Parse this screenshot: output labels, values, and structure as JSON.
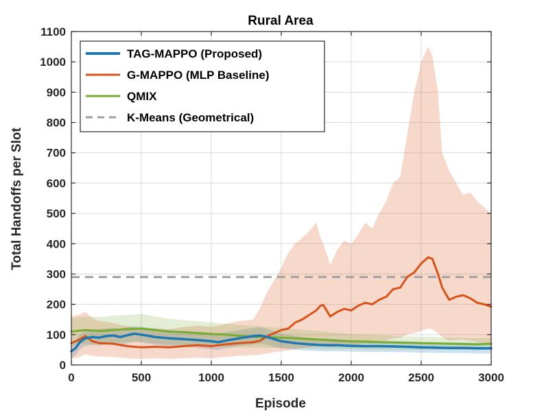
{
  "chart_data": {
    "type": "line",
    "title": "Rural Area",
    "xlabel": "Episode",
    "ylabel": "Total Handoffs per Slot",
    "xlim": [
      0,
      3000
    ],
    "ylim": [
      0,
      1100
    ],
    "xticks": [
      0,
      500,
      1000,
      1500,
      2000,
      2500,
      3000
    ],
    "yticks": [
      0,
      100,
      200,
      300,
      400,
      500,
      600,
      700,
      800,
      900,
      1000,
      1100
    ],
    "xtick_labels": [
      "0",
      "500",
      "1000",
      "1500",
      "2000",
      "2500",
      "3000"
    ],
    "ytick_labels": [
      "0",
      "100",
      "200",
      "300",
      "400",
      "500",
      "600",
      "700",
      "800",
      "900",
      "1000",
      "1100"
    ],
    "grid": true,
    "legend_position": "top-left",
    "series": [
      {
        "name": "TAG-MAPPO (Proposed)",
        "color": "#1f77b4",
        "style": "solid",
        "x": [
          0,
          30,
          60,
          100,
          150,
          200,
          250,
          300,
          350,
          400,
          450,
          500,
          550,
          600,
          700,
          800,
          900,
          1000,
          1050,
          1100,
          1200,
          1300,
          1350,
          1400,
          1450,
          1500,
          1600,
          1700,
          1800,
          1900,
          2000,
          2100,
          2200,
          2300,
          2400,
          2500,
          2600,
          2700,
          2800,
          2900,
          3000
        ],
        "values": [
          45,
          55,
          75,
          88,
          92,
          90,
          95,
          97,
          92,
          98,
          103,
          100,
          96,
          92,
          88,
          85,
          82,
          78,
          75,
          80,
          88,
          95,
          97,
          92,
          85,
          78,
          72,
          68,
          65,
          65,
          63,
          62,
          62,
          61,
          60,
          58,
          57,
          56,
          56,
          55,
          55
        ],
        "band_upper": [
          72,
          82,
          100,
          112,
          118,
          118,
          120,
          122,
          120,
          125,
          128,
          126,
          123,
          118,
          115,
          112,
          110,
          106,
          103,
          108,
          115,
          122,
          125,
          118,
          110,
          102,
          95,
          90,
          86,
          85,
          82,
          80,
          80,
          79,
          78,
          76,
          75,
          74,
          74,
          73,
          73
        ],
        "band_lower": [
          25,
          32,
          50,
          62,
          66,
          64,
          68,
          70,
          66,
          72,
          76,
          74,
          70,
          66,
          62,
          60,
          56,
          52,
          50,
          54,
          62,
          68,
          70,
          66,
          60,
          55,
          50,
          47,
          45,
          45,
          44,
          43,
          43,
          42,
          42,
          40,
          40,
          39,
          39,
          38,
          38
        ]
      },
      {
        "name": "G-MAPPO (MLP Baseline)",
        "color": "#d95319",
        "style": "solid",
        "x": [
          0,
          50,
          100,
          150,
          200,
          300,
          400,
          500,
          600,
          700,
          800,
          900,
          1000,
          1100,
          1200,
          1300,
          1350,
          1400,
          1450,
          1500,
          1550,
          1600,
          1650,
          1700,
          1750,
          1780,
          1800,
          1830,
          1850,
          1900,
          1950,
          2000,
          2050,
          2100,
          2150,
          2200,
          2250,
          2300,
          2350,
          2400,
          2450,
          2500,
          2550,
          2580,
          2620,
          2650,
          2700,
          2750,
          2800,
          2850,
          2900,
          2950,
          3000
        ],
        "values": [
          72,
          82,
          95,
          78,
          72,
          70,
          62,
          58,
          60,
          58,
          62,
          65,
          62,
          68,
          72,
          75,
          80,
          95,
          105,
          115,
          120,
          140,
          150,
          165,
          180,
          195,
          198,
          175,
          160,
          175,
          185,
          180,
          195,
          205,
          200,
          215,
          225,
          250,
          255,
          290,
          305,
          335,
          355,
          350,
          300,
          255,
          215,
          225,
          230,
          220,
          205,
          200,
          192
        ],
        "band_upper": [
          160,
          165,
          175,
          155,
          145,
          138,
          128,
          120,
          122,
          118,
          125,
          130,
          125,
          135,
          145,
          150,
          190,
          240,
          280,
          320,
          370,
          400,
          420,
          440,
          470,
          420,
          400,
          360,
          330,
          380,
          410,
          400,
          430,
          470,
          450,
          500,
          540,
          600,
          620,
          760,
          900,
          1000,
          1050,
          1020,
          900,
          700,
          640,
          600,
          560,
          570,
          540,
          520,
          500
        ],
        "band_lower": [
          20,
          25,
          35,
          30,
          28,
          26,
          22,
          20,
          22,
          20,
          22,
          24,
          22,
          26,
          30,
          32,
          34,
          38,
          42,
          45,
          48,
          52,
          55,
          58,
          62,
          65,
          68,
          62,
          58,
          62,
          65,
          63,
          68,
          72,
          70,
          75,
          80,
          88,
          90,
          100,
          105,
          112,
          120,
          118,
          105,
          92,
          80,
          82,
          84,
          80,
          75,
          72,
          70
        ]
      },
      {
        "name": "QMIX",
        "color": "#77ac30",
        "style": "solid",
        "x": [
          0,
          100,
          200,
          300,
          400,
          500,
          600,
          700,
          800,
          900,
          1000,
          1100,
          1200,
          1300,
          1400,
          1500,
          1600,
          1700,
          1800,
          1900,
          2000,
          2100,
          2200,
          2300,
          2400,
          2500,
          2600,
          2700,
          2800,
          2900,
          3000
        ],
        "values": [
          110,
          115,
          112,
          115,
          118,
          120,
          115,
          110,
          108,
          105,
          102,
          100,
          96,
          93,
          92,
          90,
          88,
          85,
          83,
          80,
          78,
          77,
          75,
          74,
          73,
          72,
          71,
          70,
          69,
          68,
          70
        ],
        "band_upper": [
          155,
          160,
          158,
          162,
          165,
          168,
          160,
          152,
          148,
          144,
          140,
          136,
          132,
          128,
          125,
          122,
          118,
          114,
          110,
          106,
          102,
          100,
          98,
          96,
          94,
          93,
          92,
          90,
          89,
          88,
          90
        ],
        "band_lower": [
          65,
          70,
          68,
          72,
          75,
          78,
          72,
          68,
          66,
          64,
          62,
          60,
          58,
          56,
          56,
          56,
          55,
          54,
          53,
          52,
          52,
          51,
          51,
          50,
          50,
          50,
          50,
          50,
          49,
          49,
          50
        ]
      },
      {
        "name": "K-Means (Geometrical)",
        "color": "#9e9e9e",
        "style": "dashed",
        "x": [
          0,
          3000
        ],
        "values": [
          290,
          290
        ]
      }
    ]
  }
}
